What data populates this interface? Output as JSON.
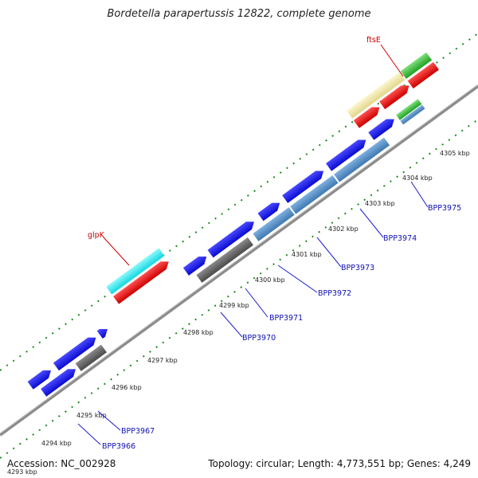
{
  "title": "Bordetella parapertussis 12822, complete genome",
  "footer": {
    "accession": "Accession: NC_002928",
    "summary": "Topology: circular; Length: 4,773,551 bp; Genes: 4,249"
  },
  "colors": {
    "backbone": "#8c8c8c",
    "tick": "#1f8a1f",
    "cds_forward": "#1a1aee",
    "cds_other": "#5b8fc7",
    "rrna_like": "#666666",
    "cyan": "#22e8ee",
    "red": "#ee1111",
    "yellow": "#efe6a0",
    "green": "#38c038",
    "gene_label": "#1010b0",
    "named_label": "#cc0000"
  },
  "kbp_labels": [
    "4293 kbp",
    "4294 kbp",
    "4295 kbp",
    "4296 kbp",
    "4297 kbp",
    "4298 kbp",
    "4299 kbp",
    "4300 kbp",
    "4301 kbp",
    "4302 kbp",
    "4303 kbp",
    "4304 kbp",
    "4305 kbp"
  ],
  "gene_labels": [
    "BPP3966",
    "BPP3967",
    "BPP3970",
    "BPP3971",
    "BPP3972",
    "BPP3973",
    "BPP3974",
    "BPP3975"
  ],
  "named_genes": [
    "glpK",
    "ftsE"
  ]
}
